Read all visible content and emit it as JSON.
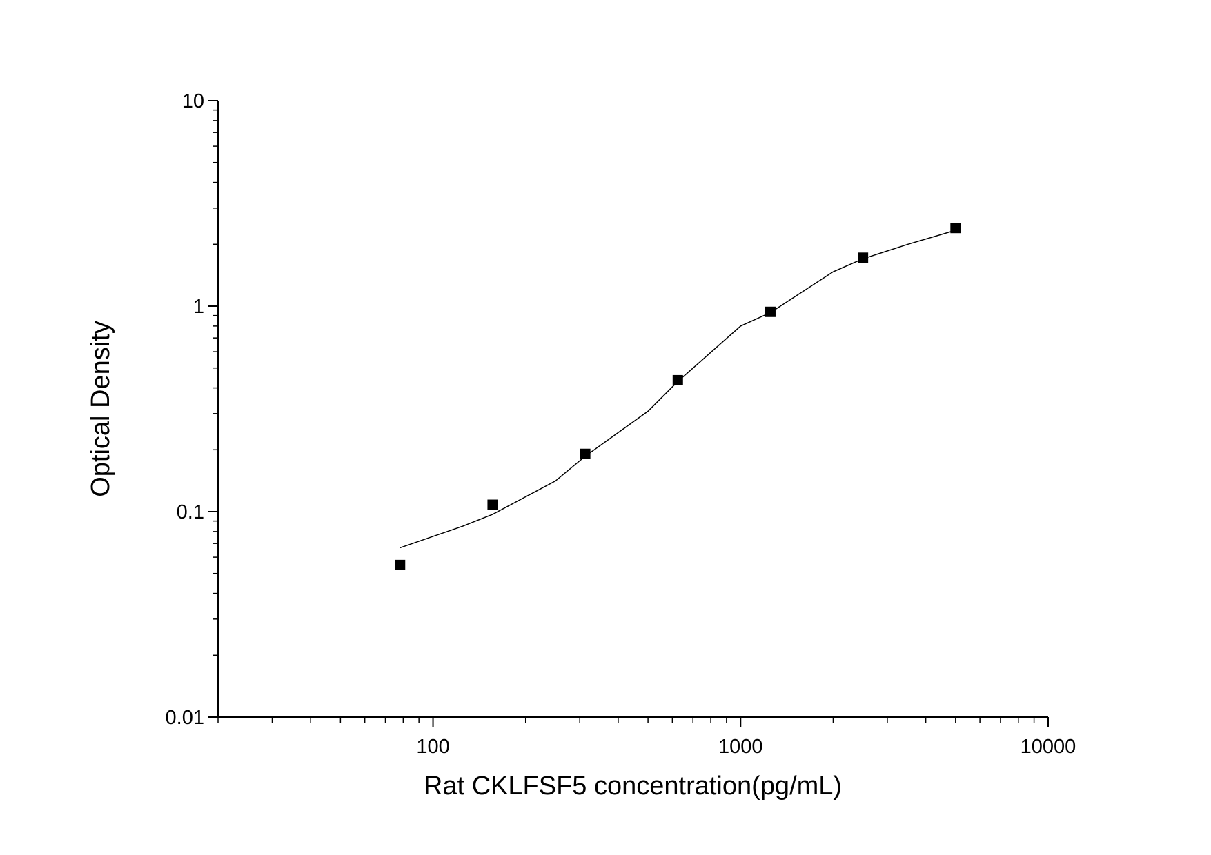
{
  "chart_data": {
    "type": "scatter",
    "x_label": "Rat CKLFSF5 concentration(pg/mL)",
    "y_label": "Optical Density",
    "x": [
      78.125,
      156.25,
      312.5,
      625,
      1250,
      2500,
      5000
    ],
    "values": [
      0.055,
      0.108,
      0.191,
      0.436,
      0.938,
      1.72,
      2.4
    ],
    "color": "#000000",
    "fit": {
      "x": [
        78.125,
        125,
        156.25,
        250,
        312.5,
        500,
        625,
        1000,
        1250,
        2000,
        2500,
        3500,
        5000
      ],
      "values": [
        0.0667,
        0.085,
        0.097,
        0.141,
        0.186,
        0.308,
        0.43,
        0.8,
        0.93,
        1.47,
        1.7,
        2.0,
        2.34
      ],
      "color": "#000000"
    },
    "log_x": true,
    "log_y": true,
    "xlim": [
      20,
      10000
    ],
    "ylim": [
      0.01,
      10
    ],
    "xticks": [
      100,
      1000,
      10000
    ],
    "yticks": [
      0.01,
      0.1,
      1,
      10
    ],
    "xminorticks": [
      20,
      30,
      40,
      50,
      60,
      70,
      80,
      90,
      200,
      300,
      400,
      500,
      600,
      700,
      800,
      900,
      2000,
      3000,
      4000,
      5000,
      6000,
      7000,
      8000,
      9000
    ],
    "yminorticks": [
      0.02,
      0.03,
      0.04,
      0.05,
      0.06,
      0.07,
      0.08,
      0.09,
      0.2,
      0.3,
      0.4,
      0.5,
      0.6,
      0.7,
      0.8,
      0.9,
      2,
      3,
      4,
      5,
      6,
      7,
      8,
      9
    ],
    "grid": false
  }
}
